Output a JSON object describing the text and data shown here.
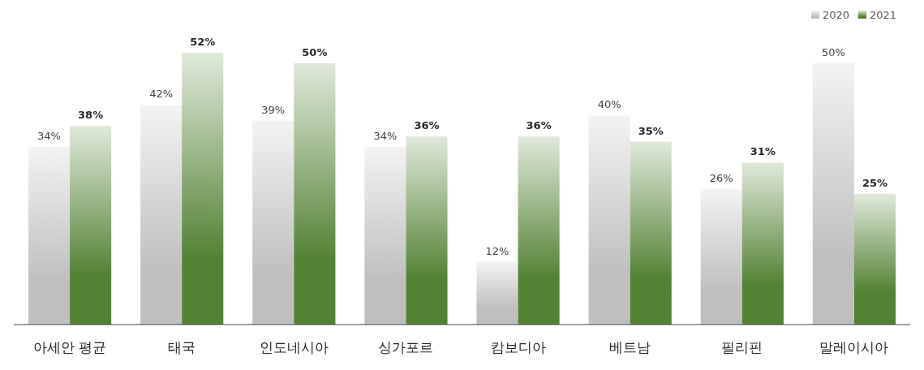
{
  "chart_data": {
    "type": "bar",
    "categories": [
      "아세안 평균",
      "태국",
      "인도네시아",
      "싱가포르",
      "캄보디아",
      "베트남",
      "필리핀",
      "말레이시아"
    ],
    "series": [
      {
        "name": "2020",
        "color": "#bfbfbf",
        "values": [
          34,
          42,
          39,
          34,
          12,
          40,
          26,
          50
        ],
        "value_labels": [
          "34%",
          "42%",
          "39%",
          "34%",
          "12%",
          "40%",
          "26%",
          "50%"
        ]
      },
      {
        "name": "2021",
        "color": "#548235",
        "values": [
          38,
          52,
          50,
          36,
          36,
          35,
          31,
          25
        ],
        "value_labels": [
          "38%",
          "52%",
          "50%",
          "36%",
          "36%",
          "35%",
          "31%",
          "25%"
        ]
      }
    ],
    "legend": "top right"
  }
}
